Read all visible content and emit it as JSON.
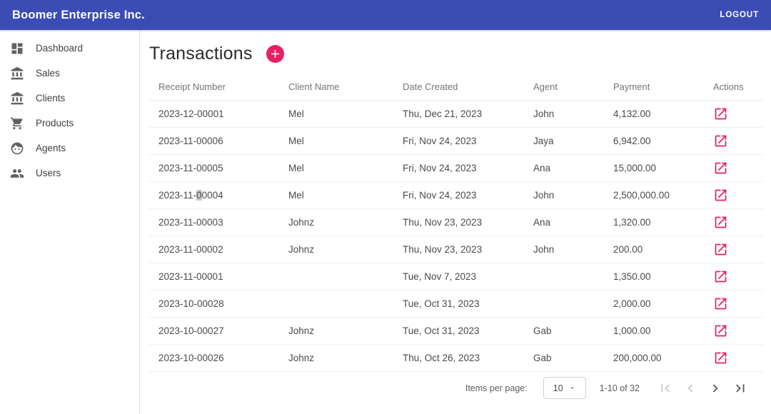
{
  "app": {
    "title": "Boomer Enterprise Inc.",
    "logout_label": "LOGOUT"
  },
  "colors": {
    "topbar": "#3c4cb5",
    "accent": "#e91e63"
  },
  "sidebar": {
    "items": [
      {
        "label": "Dashboard",
        "icon": "dashboard-icon"
      },
      {
        "label": "Sales",
        "icon": "bank-icon"
      },
      {
        "label": "Clients",
        "icon": "bank-icon"
      },
      {
        "label": "Products",
        "icon": "cart-icon"
      },
      {
        "label": "Agents",
        "icon": "face-icon"
      },
      {
        "label": "Users",
        "icon": "users-icon"
      }
    ]
  },
  "main": {
    "title": "Transactions",
    "add_button_icon": "plus-icon",
    "table": {
      "columns": [
        "Receipt Number",
        "Client Name",
        "Date Created",
        "Agent",
        "Payment",
        "Actions"
      ],
      "action_icon": "open-in-new-icon",
      "rows": [
        {
          "receipt": "2023-12-00001",
          "client": "Mel",
          "date": "Thu, Dec 21, 2023",
          "agent": "John",
          "payment": "4,132.00"
        },
        {
          "receipt": "2023-11-00006",
          "client": "Mel",
          "date": "Fri, Nov 24, 2023",
          "agent": "Jaya",
          "payment": "6,942.00"
        },
        {
          "receipt": "2023-11-00005",
          "client": "Mel",
          "date": "Fri, Nov 24, 2023",
          "agent": "Ana",
          "payment": "15,000.00"
        },
        {
          "receipt": "2023-11-00004",
          "receipt_selection": {
            "pre": "2023-11-",
            "selected": "0",
            "post": "0004"
          },
          "client": "Mel",
          "date": "Fri, Nov 24, 2023",
          "agent": "John",
          "payment": "2,500,000.00"
        },
        {
          "receipt": "2023-11-00003",
          "client": "Johnz",
          "date": "Thu, Nov 23, 2023",
          "agent": "Ana",
          "payment": "1,320.00"
        },
        {
          "receipt": "2023-11-00002",
          "client": "Johnz",
          "date": "Thu, Nov 23, 2023",
          "agent": "John",
          "payment": "200.00"
        },
        {
          "receipt": "2023-11-00001",
          "client": "",
          "date": "Tue, Nov 7, 2023",
          "agent": "",
          "payment": "1,350.00"
        },
        {
          "receipt": "2023-10-00028",
          "client": "",
          "date": "Tue, Oct 31, 2023",
          "agent": "",
          "payment": "2,000.00"
        },
        {
          "receipt": "2023-10-00027",
          "client": "Johnz",
          "date": "Tue, Oct 31, 2023",
          "agent": "Gab",
          "payment": "1,000.00"
        },
        {
          "receipt": "2023-10-00026",
          "client": "Johnz",
          "date": "Thu, Oct 26, 2023",
          "agent": "Gab",
          "payment": "200,000.00"
        }
      ]
    },
    "paginator": {
      "items_per_page_label": "Items per page:",
      "page_size": "10",
      "select_caret_icon": "caret-down-icon",
      "range_label": "1-10 of 32",
      "nav": [
        {
          "name": "first-page-button",
          "icon": "first-page-icon",
          "enabled": false
        },
        {
          "name": "prev-page-button",
          "icon": "chevron-left-icon",
          "enabled": false
        },
        {
          "name": "next-page-button",
          "icon": "chevron-right-icon",
          "enabled": true
        },
        {
          "name": "last-page-button",
          "icon": "last-page-icon",
          "enabled": true
        }
      ]
    }
  }
}
